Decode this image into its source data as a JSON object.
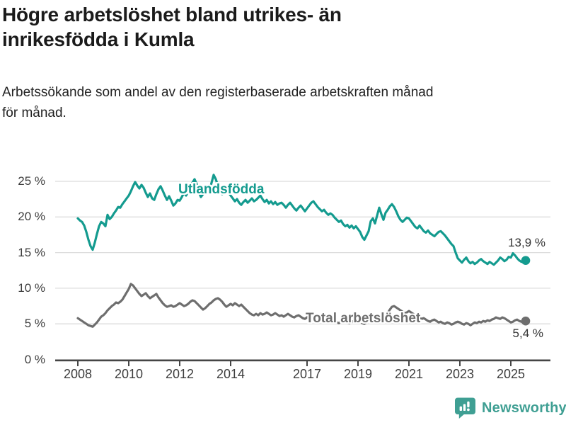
{
  "header": {
    "title": "Högre arbetslöshet bland utrikes- än inrikesfödda i Kumla",
    "title_lines": [
      "Högre arbetslöshet bland utrikes- än",
      "inrikesfödda i Kumla"
    ],
    "subtitle": "Arbetssökande som andel av den registerbaserade arbetskraften månad för månad.",
    "subtitle_lines": [
      "Arbetssökande som andel av den registerbaserade arbetskraften månad",
      "för månad."
    ]
  },
  "footer": {
    "brand": "Newsworthy",
    "brand_color": "#3f9f93",
    "logo_icon": "speech-bubble-bar-chart-icon"
  },
  "chart_data": {
    "type": "line",
    "title": "Högre arbetslöshet bland utrikes- än inrikesfödda i Kumla",
    "subtitle": "Arbetssökande som andel av den registerbaserade arbetskraften månad för månad.",
    "unit": "%",
    "grid": true,
    "grid_color": "#dcdcdc",
    "axis_color": "#454545",
    "x_axis": {
      "start_year": 2008,
      "frequency": "monthly",
      "ticks": [
        2008,
        2010,
        2012,
        2014,
        2017,
        2019,
        2021,
        2023,
        2025
      ],
      "tick_labels": [
        "2008",
        "2010",
        "2012",
        "2014",
        "2017",
        "2019",
        "2021",
        "2023",
        "2025"
      ]
    },
    "y_axis": {
      "range": [
        0,
        26.5
      ],
      "ticks": [
        0,
        5,
        10,
        15,
        20,
        25
      ],
      "tick_labels": [
        "0 %",
        "5 %",
        "10 %",
        "15 %",
        "20 %",
        "25 %"
      ]
    },
    "series": [
      {
        "id": "utlandsfodda",
        "label": "Utlandsfödda",
        "color": "#149b8f",
        "end_value": 13.9,
        "end_label": "13,9 %",
        "values": [
          19.8,
          19.5,
          19.3,
          18.8,
          17.9,
          16.8,
          15.9,
          15.4,
          16.4,
          17.6,
          18.7,
          19.3,
          19.1,
          18.7,
          20.3,
          19.7,
          20.0,
          20.5,
          20.9,
          21.4,
          21.3,
          21.8,
          22.2,
          22.6,
          23.0,
          23.6,
          24.3,
          24.9,
          24.4,
          24.0,
          24.5,
          24.1,
          23.4,
          22.8,
          23.3,
          22.6,
          22.4,
          23.2,
          23.9,
          24.3,
          23.7,
          23.0,
          22.4,
          22.9,
          22.3,
          21.6,
          21.9,
          22.4,
          22.3,
          22.8,
          23.4,
          23.0,
          23.6,
          24.2,
          24.8,
          25.3,
          24.6,
          23.5,
          22.8,
          23.2,
          23.8,
          24.3,
          23.6,
          24.8,
          25.9,
          25.3,
          24.4,
          23.8,
          23.2,
          23.6,
          24.0,
          23.4,
          23.0,
          22.6,
          22.2,
          22.5,
          22.0,
          21.7,
          22.1,
          22.4,
          22.0,
          22.3,
          22.6,
          22.2,
          22.4,
          22.7,
          23.0,
          22.5,
          22.1,
          22.4,
          21.9,
          22.2,
          21.8,
          22.1,
          21.7,
          21.9,
          22.0,
          21.7,
          21.3,
          21.7,
          22.0,
          21.6,
          21.2,
          20.9,
          21.3,
          21.6,
          21.2,
          20.8,
          21.2,
          21.6,
          22.0,
          22.2,
          21.8,
          21.4,
          21.1,
          20.8,
          21.0,
          20.6,
          20.3,
          20.5,
          20.3,
          19.9,
          19.6,
          19.3,
          19.5,
          19.0,
          18.7,
          18.9,
          18.5,
          18.8,
          18.4,
          18.7,
          18.3,
          17.9,
          17.2,
          16.8,
          17.4,
          18.0,
          19.4,
          19.8,
          19.1,
          20.2,
          21.3,
          20.4,
          19.6,
          20.6,
          21.0,
          21.5,
          21.8,
          21.4,
          20.8,
          20.1,
          19.6,
          19.3,
          19.6,
          19.9,
          19.8,
          19.4,
          19.0,
          18.6,
          18.4,
          18.8,
          18.4,
          18.0,
          17.8,
          18.1,
          17.7,
          17.5,
          17.3,
          17.6,
          17.9,
          18.0,
          17.7,
          17.4,
          17.0,
          16.6,
          16.2,
          15.9,
          15.0,
          14.2,
          13.9,
          13.6,
          14.0,
          14.3,
          13.8,
          13.5,
          13.7,
          13.4,
          13.6,
          13.9,
          14.1,
          13.8,
          13.6,
          13.4,
          13.7,
          13.5,
          13.3,
          13.6,
          13.9,
          14.3,
          14.1,
          13.8,
          14.0,
          14.4,
          14.3,
          14.9,
          14.6,
          14.2,
          13.9,
          13.7,
          13.8,
          13.9
        ]
      },
      {
        "id": "total-arbetsloshet",
        "label": "Total arbetslöshet",
        "color": "#6e6e6e",
        "end_value": 5.4,
        "end_label": "5,4 %",
        "values": [
          5.8,
          5.6,
          5.4,
          5.2,
          5.0,
          4.8,
          4.7,
          4.6,
          4.9,
          5.2,
          5.6,
          6.0,
          6.2,
          6.5,
          6.9,
          7.2,
          7.5,
          7.7,
          8.0,
          7.9,
          8.1,
          8.4,
          8.9,
          9.4,
          9.9,
          10.6,
          10.4,
          10.0,
          9.6,
          9.2,
          8.9,
          9.1,
          9.3,
          8.9,
          8.6,
          8.8,
          9.0,
          9.2,
          8.7,
          8.3,
          7.9,
          7.6,
          7.4,
          7.5,
          7.6,
          7.4,
          7.5,
          7.7,
          7.9,
          7.7,
          7.5,
          7.6,
          7.8,
          8.1,
          8.3,
          8.2,
          7.9,
          7.6,
          7.3,
          7.0,
          7.2,
          7.5,
          7.8,
          8.0,
          8.3,
          8.5,
          8.6,
          8.4,
          8.1,
          7.7,
          7.4,
          7.6,
          7.8,
          7.6,
          7.9,
          7.7,
          7.5,
          7.7,
          7.4,
          7.1,
          6.8,
          6.5,
          6.3,
          6.2,
          6.4,
          6.2,
          6.5,
          6.3,
          6.4,
          6.6,
          6.4,
          6.2,
          6.3,
          6.5,
          6.3,
          6.1,
          6.2,
          6.0,
          6.2,
          6.4,
          6.2,
          6.0,
          5.9,
          6.1,
          6.2,
          6.0,
          5.8,
          5.7,
          5.9,
          6.1,
          6.0,
          5.8,
          5.6,
          5.5,
          5.7,
          5.8,
          5.6,
          5.5,
          5.3,
          5.4,
          5.6,
          5.4,
          5.2,
          5.1,
          5.3,
          5.5,
          5.4,
          5.2,
          5.1,
          5.3,
          5.4,
          5.6,
          5.5,
          5.3,
          5.1,
          5.0,
          5.2,
          5.4,
          5.6,
          5.5,
          5.7,
          5.8,
          6.0,
          6.2,
          6.4,
          6.2,
          6.5,
          7.0,
          7.4,
          7.5,
          7.3,
          7.1,
          6.9,
          6.7,
          6.5,
          6.6,
          6.8,
          6.6,
          6.4,
          6.2,
          6.0,
          5.9,
          5.7,
          5.8,
          5.6,
          5.4,
          5.3,
          5.5,
          5.6,
          5.4,
          5.2,
          5.3,
          5.1,
          5.0,
          5.2,
          5.1,
          4.9,
          5.0,
          5.2,
          5.3,
          5.2,
          5.0,
          4.9,
          5.1,
          5.0,
          4.8,
          5.0,
          5.2,
          5.1,
          5.3,
          5.2,
          5.4,
          5.3,
          5.5,
          5.4,
          5.6,
          5.7,
          5.9,
          5.8,
          5.7,
          5.9,
          5.8,
          5.6,
          5.4,
          5.2,
          5.3,
          5.5,
          5.6,
          5.4,
          5.3,
          5.2,
          5.4
        ]
      }
    ]
  }
}
